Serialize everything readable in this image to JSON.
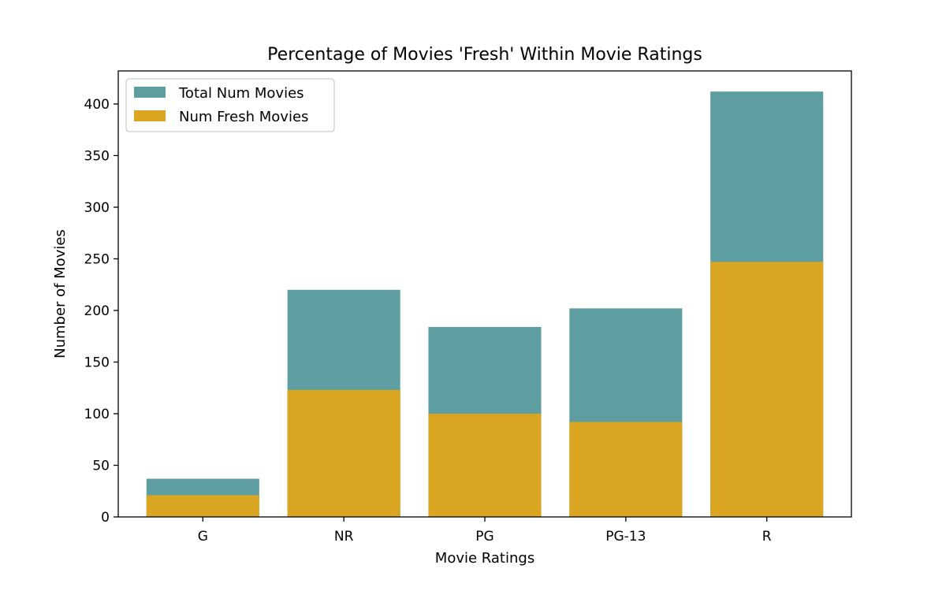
{
  "chart_data": {
    "type": "bar",
    "stacked": false,
    "overlaid": true,
    "title": "Percentage of Movies 'Fresh' Within Movie Ratings",
    "xlabel": "Movie Ratings",
    "ylabel": "Number of Movies",
    "categories": [
      "G",
      "NR",
      "PG",
      "PG-13",
      "R"
    ],
    "series": [
      {
        "name": "Total Num Movies",
        "values": [
          37,
          220,
          184,
          202,
          412
        ],
        "color": "#5f9ea0"
      },
      {
        "name": "Num Fresh Movies",
        "values": [
          21,
          123,
          100,
          92,
          247
        ],
        "color": "#daa520"
      }
    ],
    "ylim": [
      0,
      432
    ],
    "yticks": [
      0,
      50,
      100,
      150,
      200,
      250,
      300,
      350,
      400
    ],
    "legend_position": "top-left",
    "grid": false
  }
}
